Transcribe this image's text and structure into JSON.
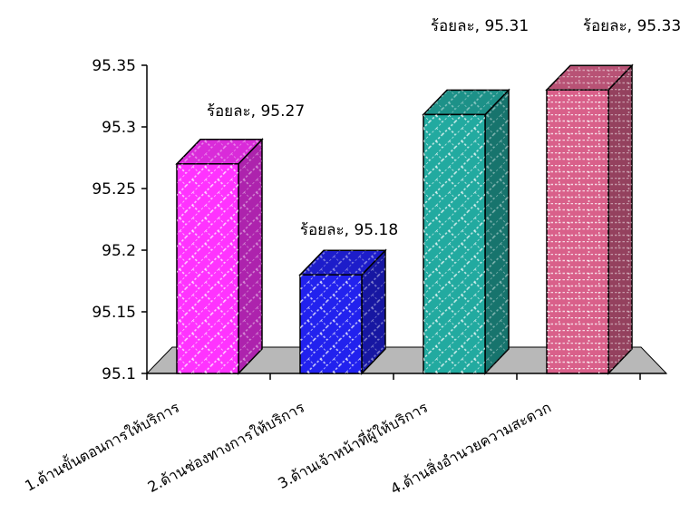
{
  "chart_data": {
    "type": "bar",
    "title": "",
    "xlabel": "",
    "ylabel": "",
    "ylim": [
      95.1,
      95.35
    ],
    "yticks": [
      "95.1",
      "95.15",
      "95.2",
      "95.25",
      "95.3",
      "95.35"
    ],
    "categories": [
      "1.ด้านขั้นตอนการให้บริการ",
      "2.ด้านช่องทางการให้บริการ",
      "3.ด้านเจ้าหน้าที่ผู้ให้บริการ",
      "4.ด้านสิ่งอำนวยความสะดวก"
    ],
    "values": [
      95.27,
      95.18,
      95.31,
      95.33
    ],
    "data_labels": [
      "ร้อยละ, 95.27",
      "ร้อยละ, 95.18",
      "ร้อยละ, 95.31",
      "ร้อยละ, 95.33"
    ],
    "colors": [
      "#ff33ff",
      "#2222ee",
      "#22aaa0",
      "#d9608a"
    ],
    "patterns": [
      "diagonal-brick",
      "diagonal-brick",
      "diagonal-brick",
      "horizontal-brick"
    ],
    "grid": false,
    "legend": "none",
    "style": "3d"
  }
}
